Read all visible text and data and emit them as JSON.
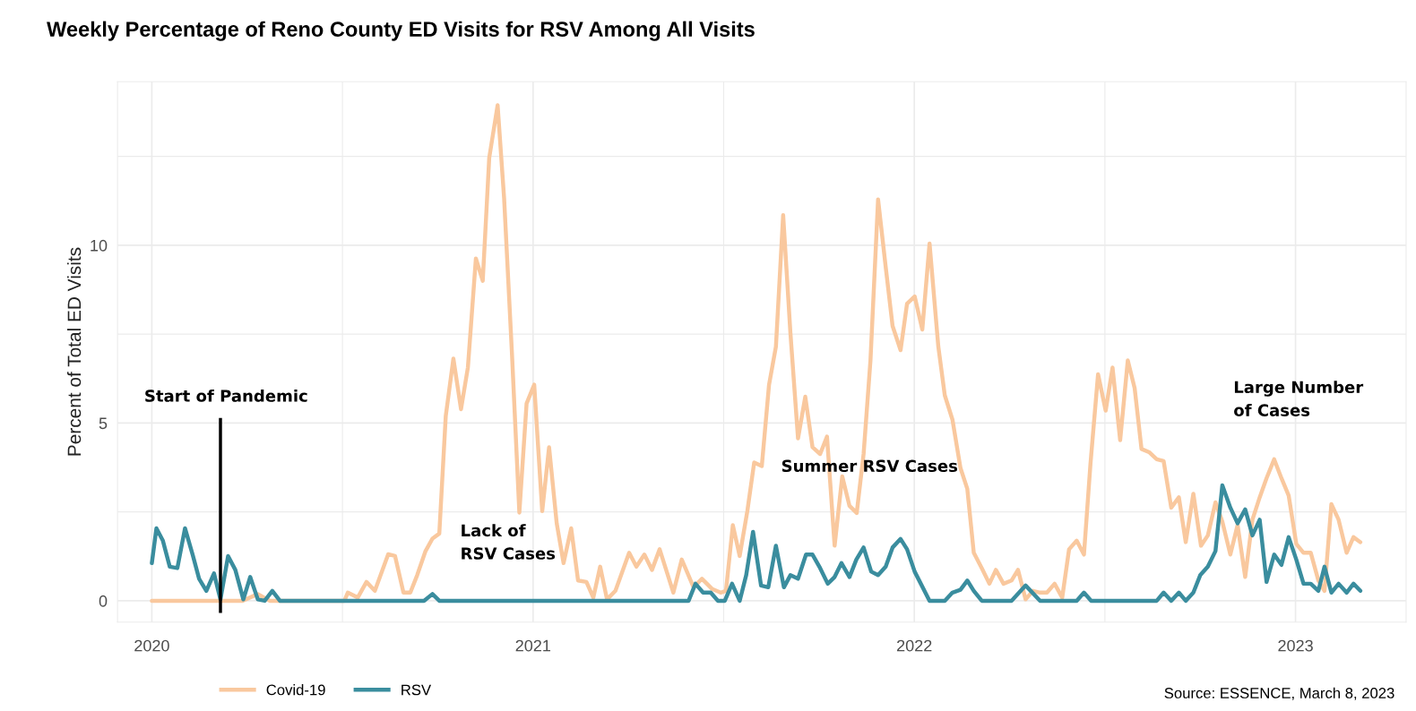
{
  "chart_data": {
    "type": "line",
    "title": "Weekly Percentage of Reno County ED Visits for RSV Among All Visits",
    "ylabel": "Percent of Total ED Visits",
    "xlim": [
      2019.91,
      2023.29
    ],
    "xticks": [
      2020,
      2021,
      2022,
      2023
    ],
    "ylim": [
      -0.6,
      14.6
    ],
    "yticks": [
      0,
      5,
      10
    ],
    "grid": true,
    "legend": "bottom left",
    "line_style": "solid",
    "marker": "none",
    "series": [
      {
        "name": "Covid-19",
        "color": "#f9c89e",
        "x": [
          2020.0,
          2020.238,
          2020.278,
          2020.309,
          2020.505,
          2020.514,
          2020.54,
          2020.563,
          2020.585,
          2020.62,
          2020.638,
          2020.66,
          2020.678,
          2020.696,
          2020.718,
          2020.736,
          2020.754,
          2020.771,
          2020.791,
          2020.811,
          2020.829,
          2020.85,
          2020.868,
          2020.885,
          2020.907,
          2020.924,
          2020.945,
          2020.964,
          2020.983,
          2021.003,
          2021.024,
          2021.042,
          2021.062,
          2021.08,
          2021.1,
          2021.118,
          2021.14,
          2021.158,
          2021.176,
          2021.194,
          2021.216,
          2021.252,
          2021.271,
          2021.292,
          2021.312,
          2021.332,
          2021.368,
          2021.39,
          2021.421,
          2021.443,
          2021.47,
          2021.492,
          2021.506,
          2021.524,
          2021.542,
          2021.562,
          2021.58,
          2021.6,
          2021.619,
          2021.637,
          2021.656,
          2021.675,
          2021.695,
          2021.714,
          2021.733,
          2021.753,
          2021.771,
          2021.791,
          2021.811,
          2021.83,
          2021.849,
          2021.867,
          2021.885,
          2021.905,
          2021.925,
          2021.943,
          2021.964,
          2021.981,
          2022.001,
          2022.021,
          2022.04,
          2022.063,
          2022.08,
          2022.1,
          2022.121,
          2022.139,
          2022.156,
          2022.177,
          2022.197,
          2022.214,
          2022.234,
          2022.255,
          2022.272,
          2022.292,
          2022.311,
          2022.33,
          2022.348,
          2022.368,
          2022.388,
          2022.406,
          2022.426,
          2022.445,
          2022.462,
          2022.482,
          2022.502,
          2022.52,
          2022.54,
          2022.56,
          2022.578,
          2022.596,
          2022.616,
          2022.636,
          2022.654,
          2022.674,
          2022.694,
          2022.712,
          2022.732,
          2022.752,
          2022.77,
          2022.79,
          2022.808,
          2022.829,
          2022.848,
          2022.868,
          2022.887,
          2022.906,
          2022.924,
          2022.944,
          2022.963,
          2022.982,
          2023.002,
          2023.021,
          2023.04,
          2023.06,
          2023.076,
          2023.094,
          2023.113,
          2023.134,
          2023.152,
          2023.17
        ],
        "values": [
          0,
          0,
          0.19,
          0,
          0,
          0.23,
          0.09,
          0.53,
          0.28,
          1.31,
          1.26,
          0.23,
          0.23,
          0.72,
          1.4,
          1.75,
          1.89,
          5.2,
          6.81,
          5.39,
          6.56,
          9.63,
          9.0,
          12.46,
          13.94,
          11.33,
          6.87,
          2.48,
          5.55,
          6.08,
          2.52,
          4.32,
          2.18,
          1.06,
          2.04,
          0.57,
          0.53,
          0.09,
          0.96,
          0.04,
          0.28,
          1.35,
          0.96,
          1.3,
          0.87,
          1.45,
          0.23,
          1.16,
          0.38,
          0.62,
          0.33,
          0.23,
          0.28,
          2.13,
          1.26,
          2.52,
          3.89,
          3.79,
          6.08,
          7.15,
          10.85,
          7.54,
          4.57,
          5.74,
          4.32,
          4.13,
          4.62,
          1.55,
          3.5,
          2.67,
          2.47,
          4.13,
          6.76,
          11.29,
          9.39,
          7.73,
          7.05,
          8.36,
          8.56,
          7.63,
          10.05,
          7.15,
          5.78,
          5.1,
          3.74,
          3.15,
          1.35,
          0.92,
          0.48,
          0.87,
          0.48,
          0.57,
          0.87,
          0.04,
          0.28,
          0.23,
          0.23,
          0.48,
          0.09,
          1.45,
          1.69,
          1.3,
          3.84,
          6.37,
          5.35,
          6.56,
          4.52,
          6.76,
          5.98,
          4.27,
          4.18,
          3.98,
          3.93,
          2.62,
          2.91,
          1.65,
          3.01,
          1.55,
          1.84,
          2.77,
          2.23,
          1.3,
          2.13,
          0.67,
          2.28,
          2.91,
          3.45,
          3.98,
          3.45,
          2.96,
          1.6,
          1.35,
          1.35,
          0.57,
          0.28,
          2.72,
          2.28,
          1.35,
          1.79,
          1.65
        ]
      },
      {
        "name": "RSV",
        "color": "#3a8d9e",
        "x": [
          2020.0,
          2020.012,
          2020.029,
          2020.047,
          2020.067,
          2020.087,
          2020.107,
          2020.124,
          2020.143,
          2020.163,
          2020.18,
          2020.2,
          2020.219,
          2020.24,
          2020.258,
          2020.278,
          2020.296,
          2020.316,
          2020.336,
          2020.714,
          2020.736,
          2020.754,
          2021.408,
          2021.426,
          2021.446,
          2021.466,
          2021.485,
          2021.503,
          2021.522,
          2021.542,
          2021.559,
          2021.577,
          2021.598,
          2021.617,
          2021.637,
          2021.658,
          2021.675,
          2021.695,
          2021.716,
          2021.733,
          2021.753,
          2021.773,
          2021.791,
          2021.809,
          2021.83,
          2021.848,
          2021.867,
          2021.887,
          2021.905,
          2021.925,
          2021.943,
          2021.964,
          2021.981,
          2022.001,
          2022.04,
          2022.08,
          2022.1,
          2022.121,
          2022.139,
          2022.156,
          2022.177,
          2022.255,
          2022.292,
          2022.33,
          2022.426,
          2022.445,
          2022.464,
          2022.636,
          2022.654,
          2022.674,
          2022.694,
          2022.712,
          2022.732,
          2022.75,
          2022.77,
          2022.79,
          2022.808,
          2022.829,
          2022.848,
          2022.868,
          2022.887,
          2022.906,
          2022.924,
          2022.944,
          2022.963,
          2022.982,
          2023.002,
          2023.021,
          2023.04,
          2023.06,
          2023.076,
          2023.094,
          2023.113,
          2023.134,
          2023.152,
          2023.17
        ],
        "values": [
          1.06,
          2.04,
          1.69,
          0.96,
          0.92,
          2.04,
          1.3,
          0.62,
          0.28,
          0.77,
          0.04,
          1.26,
          0.87,
          0.04,
          0.67,
          0.04,
          0,
          0.28,
          0,
          0,
          0.19,
          0,
          0,
          0.48,
          0.23,
          0.23,
          0,
          0,
          0.48,
          0,
          0.72,
          1.94,
          0.43,
          0.38,
          1.55,
          0.38,
          0.72,
          0.62,
          1.3,
          1.3,
          0.92,
          0.48,
          0.67,
          1.06,
          0.67,
          1.16,
          1.5,
          0.82,
          0.72,
          0.96,
          1.5,
          1.74,
          1.45,
          0.82,
          0,
          0,
          0.23,
          0.31,
          0.57,
          0.28,
          0,
          0,
          0.43,
          0,
          0,
          0.23,
          0,
          0,
          0.23,
          0,
          0.23,
          0,
          0.23,
          0.72,
          0.96,
          1.4,
          3.25,
          2.62,
          2.18,
          2.57,
          1.84,
          2.28,
          0.53,
          1.3,
          1.01,
          1.79,
          1.16,
          0.48,
          0.48,
          0.28,
          0.96,
          0.23,
          0.48,
          0.23,
          0.48,
          0.28
        ]
      }
    ],
    "ref_lines": [
      {
        "axis": "x",
        "value": 2020.18,
        "label": "Start of Pandemic",
        "color": "#000000",
        "line_style": "solid"
      }
    ],
    "annotations": [
      "Lack of\nRSV Cases",
      "Summer RSV Cases",
      "Large Number\nof Cases",
      "Source: ESSENCE, March 8, 2023"
    ]
  }
}
